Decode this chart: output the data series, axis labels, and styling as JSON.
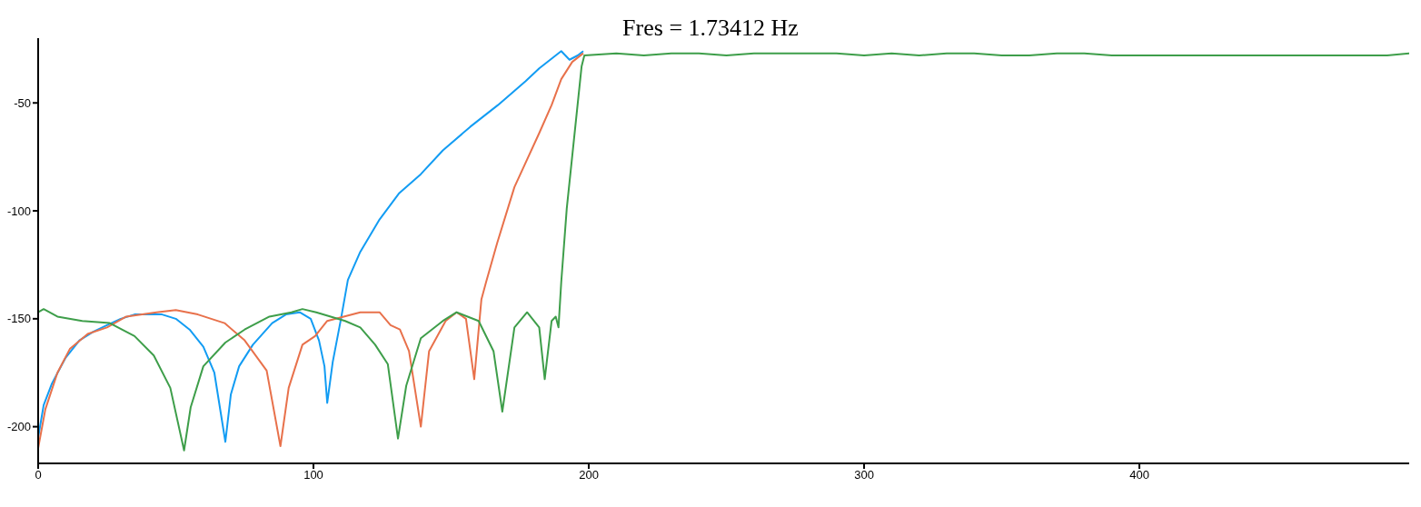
{
  "chart_data": {
    "type": "line",
    "title": "Fres = 1.73412 Hz",
    "xlim": [
      0,
      498
    ],
    "xticks": [
      0,
      100,
      200,
      300,
      400
    ],
    "ylim": [
      -217,
      -20
    ],
    "yticks": [
      -50,
      -100,
      -150,
      -200
    ],
    "grid": false,
    "legend": false,
    "marker": "none",
    "line_style": "solid",
    "series": [
      {
        "color": "#129cf3",
        "x": [
          0,
          2,
          5,
          10,
          15,
          20,
          25,
          30,
          35,
          40,
          45,
          50,
          55,
          60,
          64,
          68,
          70,
          73,
          78,
          85,
          90,
          95,
          99,
          102,
          104,
          105,
          107,
          110,
          112.5,
          117,
          124,
          131,
          139,
          147,
          157,
          167,
          177,
          182,
          190,
          193,
          196,
          198
        ],
        "values": [
          -205,
          -190,
          -180,
          -168,
          -160,
          -156,
          -153,
          -150,
          -148,
          -148,
          -148,
          -150,
          -155,
          -163,
          -175,
          -207,
          -185,
          -172,
          -162,
          -152,
          -148,
          -147,
          -150,
          -160,
          -172,
          -189,
          -170,
          -150,
          -132,
          -119,
          -104,
          -92,
          -83,
          -72,
          -61,
          -51,
          -40,
          -34,
          -26,
          -30,
          -28,
          -26
        ]
      },
      {
        "color": "#e8714b",
        "x": [
          0,
          2.6,
          7,
          11.5,
          18,
          25,
          32,
          43,
          50,
          58,
          67.7,
          75,
          83,
          88,
          91,
          96,
          100.6,
          105,
          117,
          124,
          128,
          131.4,
          134.7,
          139,
          142,
          148,
          152,
          155.4,
          158.4,
          161,
          162.7,
          166.7,
          173,
          176.6,
          182,
          186.5,
          190,
          194,
          198
        ],
        "values": [
          -210,
          -192,
          -175,
          -164,
          -157,
          -154,
          -149,
          -147,
          -146,
          -148,
          -152,
          -160,
          -174,
          -209,
          -182,
          -162,
          -158,
          -151,
          -147,
          -147,
          -153,
          -155,
          -165,
          -200,
          -165,
          -151,
          -147,
          -150,
          -178,
          -141,
          -133,
          -115,
          -89,
          -79,
          -64,
          -51,
          -39,
          -31,
          -27
        ]
      },
      {
        "color": "#3e9e4a",
        "x": [
          0,
          2,
          7,
          16,
          26,
          35,
          42,
          48,
          53,
          55.4,
          60,
          68,
          75,
          84,
          92,
          96,
          101,
          111.5,
          117,
          122.4,
          127,
          130.7,
          133.7,
          139,
          147,
          152,
          160,
          165.4,
          168.6,
          173,
          177.6,
          182,
          184,
          186.5,
          188,
          189,
          190,
          192,
          197.4,
          198.4,
          210,
          220,
          230,
          240,
          250,
          260,
          270,
          280,
          290,
          300,
          310,
          320,
          330,
          340,
          350,
          360,
          370,
          380,
          390,
          400,
          410,
          420,
          430,
          440,
          450,
          460,
          470,
          480,
          490,
          498
        ],
        "values": [
          -147,
          -145.5,
          -149,
          -151,
          -152,
          -158,
          -167,
          -182,
          -211,
          -191,
          -172,
          -161,
          -155,
          -149,
          -147,
          -145.5,
          -147,
          -151,
          -154,
          -162,
          -171,
          -205.5,
          -181,
          -159,
          -151,
          -147,
          -151,
          -165,
          -193,
          -154,
          -147,
          -154,
          -178,
          -151,
          -149,
          -154,
          -133,
          -99,
          -33,
          -28,
          -27,
          -28,
          -27,
          -27,
          -28,
          -27,
          -27,
          -27,
          -27,
          -28,
          -27,
          -28,
          -27,
          -27,
          -28,
          -28,
          -27,
          -27,
          -28,
          -28,
          -28,
          -28,
          -28,
          -28,
          -28,
          -28,
          -28,
          -28,
          -28,
          -27
        ]
      }
    ]
  }
}
